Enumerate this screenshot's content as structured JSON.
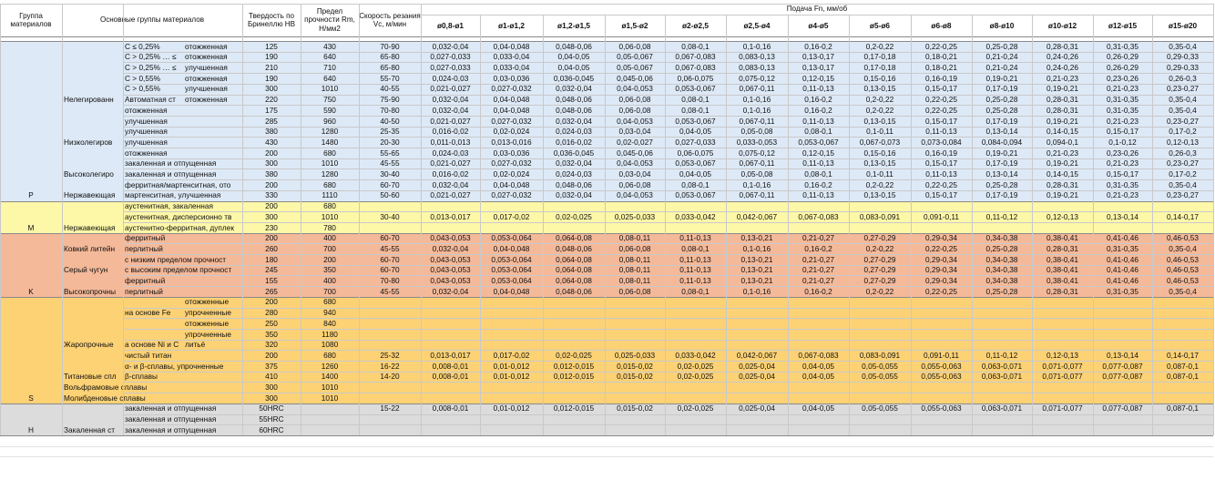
{
  "colors": {
    "P": "#dde9f6",
    "M": "#fdf7a8",
    "K": "#f4b999",
    "S": "#fdd275",
    "H": "#dcdcdc",
    "grid": "#c9c9c9",
    "header_bg": "#ffffff"
  },
  "header": {
    "group": "Группа материалов",
    "main_groups": "Основные группы материалов",
    "hardness": "Твердость по Бринеллю НВ",
    "strength": "Предел прочности Rm, Н/мм2",
    "speed": "Скорость резания Vc, м/мин",
    "feed_title": "Подача Fn, мм/об",
    "diameters": [
      "ø0,8-ø1",
      "ø1-ø1,2",
      "ø1,2-ø1,5",
      "ø1,5-ø2",
      "ø2-ø2,5",
      "ø2,5-ø4",
      "ø4-ø5",
      "ø5-ø6",
      "ø6-ø8",
      "ø8-ø10",
      "ø10-ø12",
      "ø12-ø15",
      "ø15-ø20"
    ]
  },
  "rows": [
    {
      "group": "",
      "g1": "",
      "g2": "C ≤ 0,25%",
      "g3": "отожженная",
      "hb": "125",
      "rm": "430",
      "vc": "70-90",
      "f": [
        "0,032-0,04",
        "0,04-0,048",
        "0,048-0,06",
        "0,06-0,08",
        "0,08-0,1",
        "0,1-0,16",
        "0,16-0,2",
        "0,2-0,22",
        "0,22-0,25",
        "0,25-0,28",
        "0,28-0,31",
        "0,31-0,35",
        "0,35-0,4"
      ]
    },
    {
      "group": "",
      "g1": "",
      "g2": "C > 0,25% … ≤",
      "g3": "отожженная",
      "hb": "190",
      "rm": "640",
      "vc": "65-80",
      "f": [
        "0,027-0,033",
        "0,033-0,04",
        "0,04-0,05",
        "0,05-0,067",
        "0,067-0,083",
        "0,083-0,13",
        "0,13-0,17",
        "0,17-0,18",
        "0,18-0,21",
        "0,21-0,24",
        "0,24-0,26",
        "0,26-0,29",
        "0,29-0,33"
      ]
    },
    {
      "group": "",
      "g1": "",
      "g2": "C > 0,25% … ≤",
      "g3": "улучшенная",
      "hb": "210",
      "rm": "710",
      "vc": "65-80",
      "f": [
        "0,027-0,033",
        "0,033-0,04",
        "0,04-0,05",
        "0,05-0,067",
        "0,067-0,083",
        "0,083-0,13",
        "0,13-0,17",
        "0,17-0,18",
        "0,18-0,21",
        "0,21-0,24",
        "0,24-0,26",
        "0,26-0,29",
        "0,29-0,33"
      ]
    },
    {
      "group": "",
      "g1": "",
      "g2": "C > 0,55%",
      "g3": "отожженная",
      "hb": "190",
      "rm": "640",
      "vc": "55-70",
      "f": [
        "0,024-0,03",
        "0,03-0,036",
        "0,036-0,045",
        "0,045-0,06",
        "0,06-0,075",
        "0,075-0,12",
        "0,12-0,15",
        "0,15-0,16",
        "0,16-0,19",
        "0,19-0,21",
        "0,21-0,23",
        "0,23-0,26",
        "0,26-0,3"
      ]
    },
    {
      "group": "",
      "g1": "",
      "g2": "C > 0,55%",
      "g3": "улучшенная",
      "hb": "300",
      "rm": "1010",
      "vc": "40-55",
      "f": [
        "0,021-0,027",
        "0,027-0,032",
        "0,032-0,04",
        "0,04-0,053",
        "0,053-0,067",
        "0,067-0,11",
        "0,11-0,13",
        "0,13-0,15",
        "0,15-0,17",
        "0,17-0,19",
        "0,19-0,21",
        "0,21-0,23",
        "0,23-0,27"
      ]
    },
    {
      "group": "",
      "g1": "Нелегированн",
      "g2": "Автоматная ст",
      "g3": "отожженная",
      "hb": "220",
      "rm": "750",
      "vc": "75-90",
      "f": [
        "0,032-0,04",
        "0,04-0,048",
        "0,048-0,06",
        "0,06-0,08",
        "0,08-0,1",
        "0,1-0,16",
        "0,16-0,2",
        "0,2-0,22",
        "0,22-0,25",
        "0,25-0,28",
        "0,28-0,31",
        "0,31-0,35",
        "0,35-0,4"
      ]
    },
    {
      "group": "",
      "g1": "",
      "g2": "отожженная",
      "g3": "",
      "hb": "175",
      "rm": "590",
      "vc": "70-80",
      "f": [
        "0,032-0,04",
        "0,04-0,048",
        "0,048-0,06",
        "0,06-0,08",
        "0,08-0,1",
        "0,1-0,16",
        "0,16-0,2",
        "0,2-0,22",
        "0,22-0,25",
        "0,25-0,28",
        "0,28-0,31",
        "0,31-0,35",
        "0,35-0,4"
      ]
    },
    {
      "group": "",
      "g1": "",
      "g2": "улучшенная",
      "g3": "",
      "hb": "285",
      "rm": "960",
      "vc": "40-50",
      "f": [
        "0,021-0,027",
        "0,027-0,032",
        "0,032-0,04",
        "0,04-0,053",
        "0,053-0,067",
        "0,067-0,11",
        "0,11-0,13",
        "0,13-0,15",
        "0,15-0,17",
        "0,17-0,19",
        "0,19-0,21",
        "0,21-0,23",
        "0,23-0,27"
      ]
    },
    {
      "group": "",
      "g1": "",
      "g2": "улучшенная",
      "g3": "",
      "hb": "380",
      "rm": "1280",
      "vc": "25-35",
      "f": [
        "0,016-0,02",
        "0,02-0,024",
        "0,024-0,03",
        "0,03-0,04",
        "0,04-0,05",
        "0,05-0,08",
        "0,08-0,1",
        "0,1-0,11",
        "0,11-0,13",
        "0,13-0,14",
        "0,14-0,15",
        "0,15-0,17",
        "0,17-0,2"
      ]
    },
    {
      "group": "",
      "g1": "Низколегиров",
      "g2": "улучшенная",
      "g3": "",
      "hb": "430",
      "rm": "1480",
      "vc": "20-30",
      "f": [
        "0,011-0,013",
        "0,013-0,016",
        "0,016-0,02",
        "0,02-0,027",
        "0,027-0,033",
        "0,033-0,053",
        "0,053-0,067",
        "0,067-0,073",
        "0,073-0,084",
        "0,084-0,094",
        "0,094-0,1",
        "0,1-0,12",
        "0,12-0,13"
      ]
    },
    {
      "group": "",
      "g1": "",
      "g2": "отожженная",
      "g3": "",
      "hb": "200",
      "rm": "680",
      "vc": "55-65",
      "f": [
        "0,024-0,03",
        "0,03-0,036",
        "0,036-0,045",
        "0,045-0,06",
        "0,06-0,075",
        "0,075-0,12",
        "0,12-0,15",
        "0,15-0,16",
        "0,16-0,19",
        "0,19-0,21",
        "0,21-0,23",
        "0,23-0,26",
        "0,26-0,3"
      ]
    },
    {
      "group": "",
      "g1": "",
      "g2": "закаленная и отпущенная",
      "g3": "",
      "hb": "300",
      "rm": "1010",
      "vc": "45-55",
      "f": [
        "0,021-0,027",
        "0,027-0,032",
        "0,032-0,04",
        "0,04-0,053",
        "0,053-0,067",
        "0,067-0,11",
        "0,11-0,13",
        "0,13-0,15",
        "0,15-0,17",
        "0,17-0,19",
        "0,19-0,21",
        "0,21-0,23",
        "0,23-0,27"
      ]
    },
    {
      "group": "",
      "g1": "Высоколегиро",
      "g2": "закаленная и отпущенная",
      "g3": "",
      "hb": "380",
      "rm": "1280",
      "vc": "30-40",
      "f": [
        "0,016-0,02",
        "0,02-0,024",
        "0,024-0,03",
        "0,03-0,04",
        "0,04-0,05",
        "0,05-0,08",
        "0,08-0,1",
        "0,1-0,11",
        "0,11-0,13",
        "0,13-0,14",
        "0,14-0,15",
        "0,15-0,17",
        "0,17-0,2"
      ]
    },
    {
      "group": "",
      "g1": "",
      "g2": "ферритная/мартенситная, ото",
      "g3": "",
      "hb": "200",
      "rm": "680",
      "vc": "60-70",
      "f": [
        "0,032-0,04",
        "0,04-0,048",
        "0,048-0,06",
        "0,06-0,08",
        "0,08-0,1",
        "0,1-0,16",
        "0,16-0,2",
        "0,2-0,22",
        "0,22-0,25",
        "0,25-0,28",
        "0,28-0,31",
        "0,31-0,35",
        "0,35-0,4"
      ]
    },
    {
      "group": "P",
      "g1": "Нержавеющая",
      "g2": "мартенситная, улучшенная",
      "g3": "",
      "hb": "330",
      "rm": "1110",
      "vc": "50-60",
      "f": [
        "0,021-0,027",
        "0,027-0,032",
        "0,032-0,04",
        "0,04-0,053",
        "0,053-0,067",
        "0,067-0,11",
        "0,11-0,13",
        "0,13-0,15",
        "0,15-0,17",
        "0,17-0,19",
        "0,19-0,21",
        "0,21-0,23",
        "0,23-0,27"
      ]
    },
    {
      "group": "",
      "g1": "",
      "g2": "аустенитная, закаленная",
      "g3": "",
      "hb": "200",
      "rm": "680",
      "vc": "",
      "f": [
        "",
        "",
        "",
        "",
        "",
        "",
        "",
        "",
        "",
        "",
        "",
        "",
        ""
      ]
    },
    {
      "group": "",
      "g1": "",
      "g2": "аустенитная, дисперсионно тв",
      "g3": "",
      "hb": "300",
      "rm": "1010",
      "vc": "30-40",
      "f": [
        "0,013-0,017",
        "0,017-0,02",
        "0,02-0,025",
        "0,025-0,033",
        "0,033-0,042",
        "0,042-0,067",
        "0,067-0,083",
        "0,083-0,091",
        "0,091-0,11",
        "0,11-0,12",
        "0,12-0,13",
        "0,13-0,14",
        "0,14-0,17"
      ]
    },
    {
      "group": "M",
      "g1": "Нержавеющая",
      "g2": "аустенитно-ферритная, дуплек",
      "g3": "",
      "hb": "230",
      "rm": "780",
      "vc": "",
      "f": [
        "",
        "",
        "",
        "",
        "",
        "",
        "",
        "",
        "",
        "",
        "",
        "",
        ""
      ]
    },
    {
      "group": "",
      "g1": "",
      "g2": "ферритный",
      "g3": "",
      "hb": "200",
      "rm": "400",
      "vc": "60-70",
      "f": [
        "0,043-0,053",
        "0,053-0,064",
        "0,064-0,08",
        "0,08-0,11",
        "0,11-0,13",
        "0,13-0,21",
        "0,21-0,27",
        "0,27-0,29",
        "0,29-0,34",
        "0,34-0,38",
        "0,38-0,41",
        "0,41-0,46",
        "0,46-0,53"
      ]
    },
    {
      "group": "",
      "g1": "Ковкий литейн",
      "g2": "перлитный",
      "g3": "",
      "hb": "260",
      "rm": "700",
      "vc": "45-55",
      "f": [
        "0,032-0,04",
        "0,04-0,048",
        "0,048-0,06",
        "0,06-0,08",
        "0,08-0,1",
        "0,1-0,16",
        "0,16-0,2",
        "0,2-0,22",
        "0,22-0,25",
        "0,25-0,28",
        "0,28-0,31",
        "0,31-0,35",
        "0,35-0,4"
      ]
    },
    {
      "group": "",
      "g1": "",
      "g2": "с низким пределом прочност",
      "g3": "",
      "hb": "180",
      "rm": "200",
      "vc": "60-70",
      "f": [
        "0,043-0,053",
        "0,053-0,064",
        "0,064-0,08",
        "0,08-0,11",
        "0,11-0,13",
        "0,13-0,21",
        "0,21-0,27",
        "0,27-0,29",
        "0,29-0,34",
        "0,34-0,38",
        "0,38-0,41",
        "0,41-0,46",
        "0,46-0,53"
      ]
    },
    {
      "group": "",
      "g1": "Серый чугун",
      "g2": "с высоким пределом прочност",
      "g3": "",
      "hb": "245",
      "rm": "350",
      "vc": "60-70",
      "f": [
        "0,043-0,053",
        "0,053-0,064",
        "0,064-0,08",
        "0,08-0,11",
        "0,11-0,13",
        "0,13-0,21",
        "0,21-0,27",
        "0,27-0,29",
        "0,29-0,34",
        "0,34-0,38",
        "0,38-0,41",
        "0,41-0,46",
        "0,46-0,53"
      ]
    },
    {
      "group": "",
      "g1": "",
      "g2": "ферритный",
      "g3": "",
      "hb": "155",
      "rm": "400",
      "vc": "70-80",
      "f": [
        "0,043-0,053",
        "0,053-0,064",
        "0,064-0,08",
        "0,08-0,11",
        "0,11-0,13",
        "0,13-0,21",
        "0,21-0,27",
        "0,27-0,29",
        "0,29-0,34",
        "0,34-0,38",
        "0,38-0,41",
        "0,41-0,46",
        "0,46-0,53"
      ]
    },
    {
      "group": "K",
      "g1": "Высокопрочны",
      "g2": "перлитный",
      "g3": "",
      "hb": "265",
      "rm": "700",
      "vc": "45-55",
      "f": [
        "0,032-0,04",
        "0,04-0,048",
        "0,048-0,06",
        "0,06-0,08",
        "0,08-0,1",
        "0,1-0,16",
        "0,16-0,2",
        "0,2-0,22",
        "0,22-0,25",
        "0,25-0,28",
        "0,28-0,31",
        "0,31-0,35",
        "0,35-0,4"
      ]
    },
    {
      "group": "",
      "g1": "",
      "g2": "",
      "g3": "отожженные",
      "hb": "200",
      "rm": "680",
      "vc": "",
      "f": [
        "",
        "",
        "",
        "",
        "",
        "",
        "",
        "",
        "",
        "",
        "",
        "",
        ""
      ]
    },
    {
      "group": "",
      "g1": "",
      "g2": "на основе Fe",
      "g3": "упрочненные",
      "hb": "280",
      "rm": "940",
      "vc": "",
      "f": [
        "",
        "",
        "",
        "",
        "",
        "",
        "",
        "",
        "",
        "",
        "",
        "",
        ""
      ]
    },
    {
      "group": "",
      "g1": "",
      "g2": "",
      "g3": "отожженные",
      "hb": "250",
      "rm": "840",
      "vc": "",
      "f": [
        "",
        "",
        "",
        "",
        "",
        "",
        "",
        "",
        "",
        "",
        "",
        "",
        ""
      ]
    },
    {
      "group": "",
      "g1": "",
      "g2": "",
      "g3": "упрочненные",
      "hb": "350",
      "rm": "1180",
      "vc": "",
      "f": [
        "",
        "",
        "",
        "",
        "",
        "",
        "",
        "",
        "",
        "",
        "",
        "",
        ""
      ]
    },
    {
      "group": "",
      "g1": "Жаропрочные",
      "g2": "а основе Ni и С",
      "g3": "литьё",
      "hb": "320",
      "rm": "1080",
      "vc": "",
      "f": [
        "",
        "",
        "",
        "",
        "",
        "",
        "",
        "",
        "",
        "",
        "",
        "",
        ""
      ]
    },
    {
      "group": "",
      "g1": "",
      "g2": "чистый титан",
      "g3": "",
      "hb": "200",
      "rm": "680",
      "vc": "25-32",
      "f": [
        "0,013-0,017",
        "0,017-0,02",
        "0,02-0,025",
        "0,025-0,033",
        "0,033-0,042",
        "0,042-0,067",
        "0,067-0,083",
        "0,083-0,091",
        "0,091-0,11",
        "0,11-0,12",
        "0,12-0,13",
        "0,13-0,14",
        "0,14-0,17"
      ]
    },
    {
      "group": "",
      "g1": "",
      "g2": "α- и β-сплавы, упрочненные",
      "g3": "",
      "hb": "375",
      "rm": "1260",
      "vc": "16-22",
      "f": [
        "0,008-0,01",
        "0,01-0,012",
        "0,012-0,015",
        "0,015-0,02",
        "0,02-0,025",
        "0,025-0,04",
        "0,04-0,05",
        "0,05-0,055",
        "0,055-0,063",
        "0,063-0,071",
        "0,071-0,077",
        "0,077-0,087",
        "0,087-0,1"
      ]
    },
    {
      "group": "",
      "g1": "Титановые спл",
      "g2": "β-сплавы",
      "g3": "",
      "hb": "410",
      "rm": "1400",
      "vc": "14-20",
      "f": [
        "0,008-0,01",
        "0,01-0,012",
        "0,012-0,015",
        "0,015-0,02",
        "0,02-0,025",
        "0,025-0,04",
        "0,04-0,05",
        "0,05-0,055",
        "0,055-0,063",
        "0,063-0,071",
        "0,071-0,077",
        "0,077-0,087",
        "0,087-0,1"
      ]
    },
    {
      "group": "",
      "g1": "Вольфрамовые сплавы",
      "g2": "",
      "g3": "",
      "hb": "300",
      "rm": "1010",
      "vc": "",
      "f": [
        "",
        "",
        "",
        "",
        "",
        "",
        "",
        "",
        "",
        "",
        "",
        "",
        ""
      ]
    },
    {
      "group": "S",
      "g1": "Молибденовые сплавы",
      "g2": "",
      "g3": "",
      "hb": "300",
      "rm": "1010",
      "vc": "",
      "f": [
        "",
        "",
        "",
        "",
        "",
        "",
        "",
        "",
        "",
        "",
        "",
        "",
        ""
      ]
    },
    {
      "group": "",
      "g1": "",
      "g2": "закаленная и отпущенная",
      "g3": "",
      "hb": "50HRC",
      "rm": "",
      "vc": "15-22",
      "f": [
        "0,008-0,01",
        "0,01-0,012",
        "0,012-0,015",
        "0,015-0,02",
        "0,02-0,025",
        "0,025-0,04",
        "0,04-0,05",
        "0,05-0,055",
        "0,055-0,063",
        "0,063-0,071",
        "0,071-0,077",
        "0,077-0,087",
        "0,087-0,1"
      ]
    },
    {
      "group": "",
      "g1": "",
      "g2": "закаленная и отпущенная",
      "g3": "",
      "hb": "55HRC",
      "rm": "",
      "vc": "",
      "f": [
        "",
        "",
        "",
        "",
        "",
        "",
        "",
        "",
        "",
        "",
        "",
        "",
        ""
      ]
    },
    {
      "group": "H",
      "g1": "Закаленная ст",
      "g2": "закаленная и отпущенная",
      "g3": "",
      "hb": "60HRC",
      "rm": "",
      "vc": "",
      "f": [
        "",
        "",
        "",
        "",
        "",
        "",
        "",
        "",
        "",
        "",
        "",
        "",
        ""
      ]
    }
  ],
  "bands": [
    {
      "key": "P",
      "from": 0,
      "to": 14
    },
    {
      "key": "M",
      "from": 15,
      "to": 17
    },
    {
      "key": "K",
      "from": 18,
      "to": 23
    },
    {
      "key": "S",
      "from": 24,
      "to": 33
    },
    {
      "key": "H",
      "from": 34,
      "to": 36
    }
  ]
}
